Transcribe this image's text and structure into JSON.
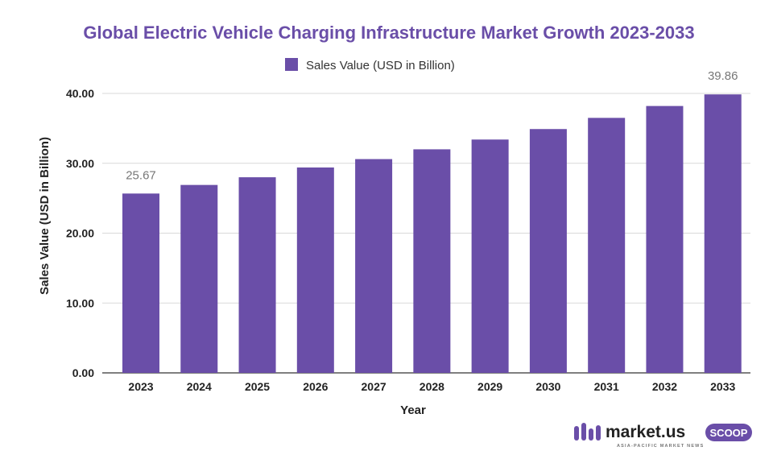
{
  "colors": {
    "bar": "#6a4ea8",
    "title": "#6a4ea8",
    "grid": "#d9d9d9",
    "brand": "#6a4ea8",
    "badge_text": "#ffffff"
  },
  "chart_data": {
    "type": "bar",
    "title": "Global Electric Vehicle Charging Infrastructure Market Growth 2023-2033",
    "xlabel": "Year",
    "ylabel": "Sales Value (USD in Billion)",
    "ylim": [
      0,
      40
    ],
    "yticks": [
      "0.00",
      "10.00",
      "20.00",
      "30.00",
      "40.00"
    ],
    "ytick_values": [
      0,
      10,
      20,
      30,
      40
    ],
    "grid": true,
    "legend_position": "top-center",
    "categories": [
      "2023",
      "2024",
      "2025",
      "2026",
      "2027",
      "2028",
      "2029",
      "2030",
      "2031",
      "2032",
      "2033"
    ],
    "series": [
      {
        "name": "Sales Value (USD in Billion)",
        "values": [
          25.67,
          26.9,
          28.0,
          29.4,
          30.6,
          32.0,
          33.4,
          34.9,
          36.5,
          38.2,
          39.86
        ]
      }
    ],
    "data_labels": [
      {
        "index": 0,
        "text": "25.67"
      },
      {
        "index": 10,
        "text": "39.86"
      }
    ]
  },
  "brand": {
    "name": "market.us",
    "badge": "SCOOP",
    "tagline": "ASIA-PACIFIC MARKET NEWS",
    "icon": "market-us-logo-icon"
  }
}
